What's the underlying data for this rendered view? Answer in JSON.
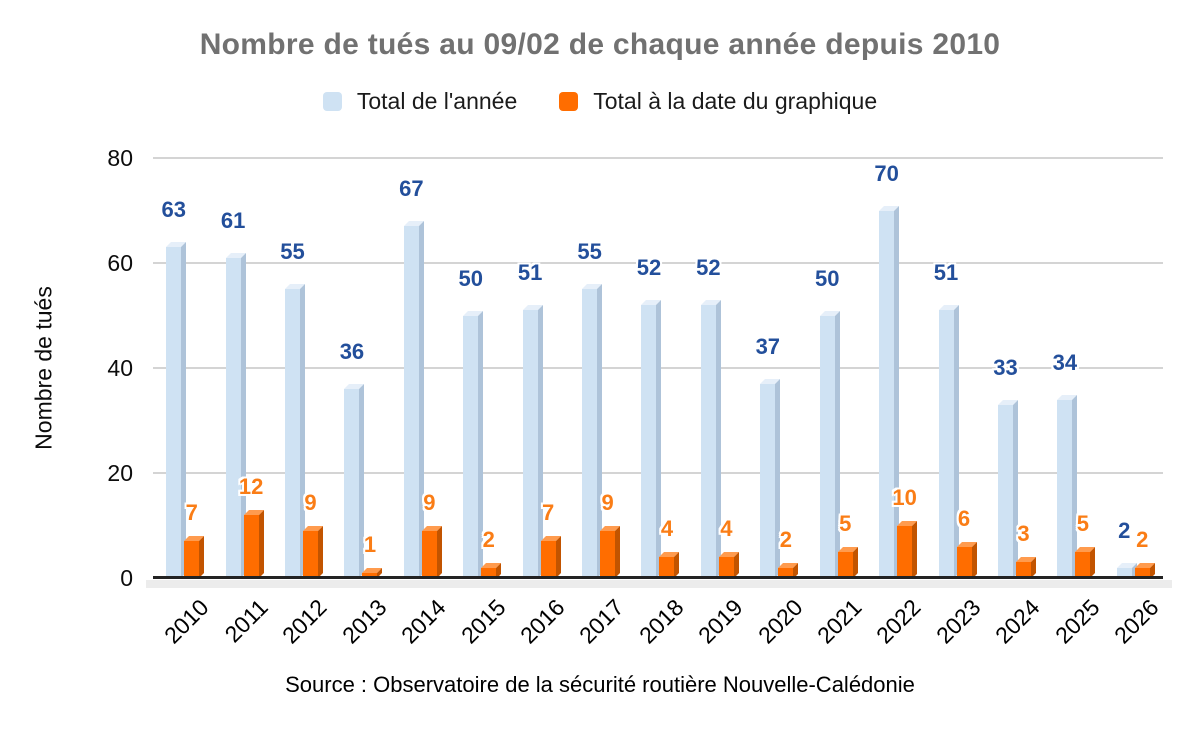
{
  "title": "Nombre de tués au 09/02 de chaque année depuis 2010",
  "legend": [
    {
      "label": "Total de l'année",
      "color": "#cfe2f3"
    },
    {
      "label": "Total à la date du graphique",
      "color": "#ff6d00"
    }
  ],
  "source": "Source : Observatoire de la sécurité routière Nouvelle-Calédonie",
  "chart_data": {
    "type": "bar",
    "title": "Nombre de tués au 09/02 de chaque année depuis 2010",
    "xlabel": "",
    "ylabel": "Nombre de tués",
    "ylim": [
      0,
      80
    ],
    "yticks": [
      0,
      20,
      40,
      60,
      80
    ],
    "grid": true,
    "legend_position": "top",
    "categories": [
      "2010",
      "2011",
      "2012",
      "2013",
      "2014",
      "2015",
      "2016",
      "2017",
      "2018",
      "2019",
      "2020",
      "2021",
      "2022",
      "2023",
      "2024",
      "2025",
      "2026"
    ],
    "series": [
      {
        "name": "Total de l'année",
        "values": [
          63,
          61,
          55,
          36,
          67,
          50,
          51,
          55,
          52,
          52,
          37,
          50,
          70,
          51,
          33,
          34,
          2
        ],
        "color": "#cfe2f3",
        "color_top": "#e6eff9",
        "color_side": "#aec3d9",
        "label_color": "#234f9b"
      },
      {
        "name": "Total à la date du graphique",
        "values": [
          7,
          12,
          9,
          1,
          9,
          2,
          7,
          9,
          4,
          4,
          2,
          5,
          10,
          6,
          3,
          5,
          2
        ],
        "color": "#ff6d00",
        "color_top": "#ff9b4e",
        "color_side": "#c25400",
        "label_color": "#fa7d16"
      }
    ]
  },
  "colors": {
    "title_text": "#717171",
    "gridline": "#d4d4d4",
    "axis_line": "#232323",
    "floor": "#ececec",
    "tick_text": "#0c0c0c"
  }
}
